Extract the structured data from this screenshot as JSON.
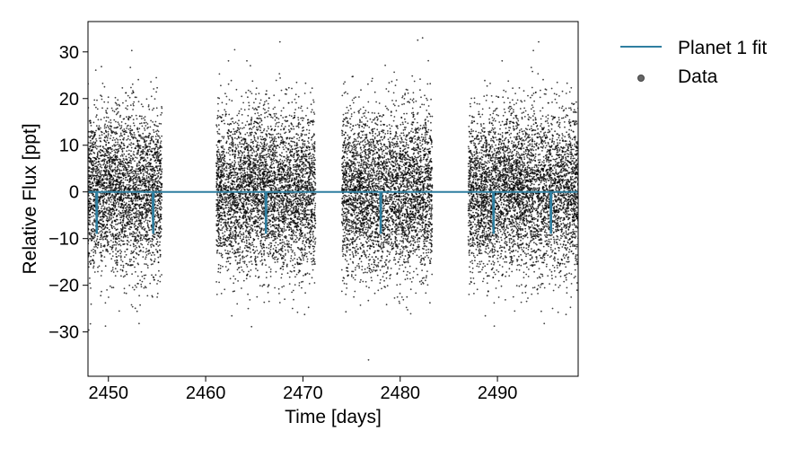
{
  "chart_data": {
    "type": "scatter",
    "title": "",
    "xlabel": "Time [days]",
    "ylabel": "Relative Flux [ppt]",
    "xlim": [
      2447.9,
      2498.3
    ],
    "ylim": [
      -39.5,
      36.5
    ],
    "xticks": [
      2450,
      2460,
      2470,
      2480,
      2490
    ],
    "yticks": [
      30,
      20,
      10,
      0,
      -10,
      -20,
      -30
    ],
    "grid": false,
    "legend_position": "outside-right",
    "series": [
      {
        "name": "Planet 1 fit",
        "kind": "line",
        "color": "#2f7fa0",
        "baseline": 0,
        "transit_times": [
          2448.8,
          2454.6,
          2466.2,
          2478.0,
          2489.6,
          2495.5
        ],
        "transit_depth": -8.8
      },
      {
        "name": "Data",
        "kind": "scatter",
        "color": "#000000",
        "segments": [
          {
            "start": 2447.9,
            "end": 2455.5
          },
          {
            "start": 2461.1,
            "end": 2471.3
          },
          {
            "start": 2474.0,
            "end": 2483.3
          },
          {
            "start": 2487.0,
            "end": 2498.3
          }
        ],
        "std_ppt": 8.5,
        "points_per_day": 420
      }
    ]
  }
}
